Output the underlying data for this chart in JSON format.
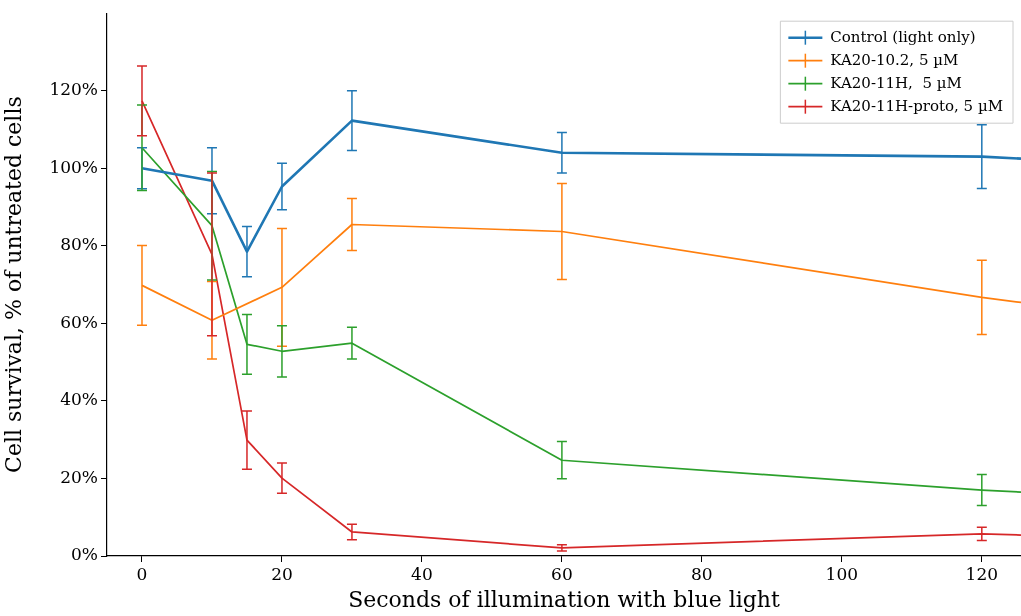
{
  "chart_data": {
    "type": "line",
    "xlabel": "Seconds of illumination with blue light",
    "ylabel": "Cell survival, % of untreated cells",
    "xlim": [
      -5,
      125.6
    ],
    "xticks": [
      0,
      20,
      40,
      60,
      80,
      100,
      120
    ],
    "ylim": [
      0,
      140
    ],
    "yticks": [
      {
        "value": 0,
        "label": "0%"
      },
      {
        "value": 20,
        "label": "20%"
      },
      {
        "value": 40,
        "label": "40%"
      },
      {
        "value": 60,
        "label": "60%"
      },
      {
        "value": 80,
        "label": "80%"
      },
      {
        "value": 100,
        "label": "100%"
      },
      {
        "value": 120,
        "label": "120%"
      }
    ],
    "grid": false,
    "legend": "top right",
    "marker": "none",
    "series": [
      {
        "name": "Control (light only)",
        "color": "#1f77b4",
        "x": [
          0,
          10,
          15,
          20,
          30,
          60,
          120,
          125.6
        ],
        "values": [
          100,
          96.8,
          78.5,
          95.3,
          112.3,
          104,
          103,
          102.5
        ],
        "errors": [
          5.3,
          8.5,
          6.5,
          6,
          7.7,
          5.2,
          8.2,
          null
        ]
      },
      {
        "name": "KA20-10.2, 5 µM",
        "color": "#ff7f0e",
        "x": [
          0,
          10,
          20,
          30,
          60,
          120,
          125.6
        ],
        "values": [
          69.8,
          60.8,
          69.3,
          85.5,
          83.7,
          66.7,
          65.4
        ],
        "errors": [
          10.3,
          10,
          15.2,
          6.7,
          12.4,
          9.6,
          null
        ]
      },
      {
        "name": "KA20-11H,  5 µM",
        "color": "#2ca02c",
        "x": [
          0,
          10,
          15,
          20,
          30,
          60,
          120,
          125.6
        ],
        "values": [
          105.3,
          85.2,
          54.6,
          52.8,
          54.9,
          24.7,
          17,
          16.5
        ],
        "errors": [
          11,
          14,
          7.7,
          6.6,
          4.1,
          4.8,
          4,
          null
        ]
      },
      {
        "name": "KA20-11H-proto, 5 µM",
        "color": "#d62728",
        "x": [
          0,
          10,
          15,
          20,
          30,
          60,
          120,
          125.6
        ],
        "values": [
          117.4,
          77.8,
          29.9,
          20.1,
          6.2,
          2.1,
          5.7,
          5.4
        ],
        "errors": [
          9,
          21,
          7.5,
          3.9,
          2,
          0.8,
          1.7,
          null
        ]
      }
    ]
  }
}
